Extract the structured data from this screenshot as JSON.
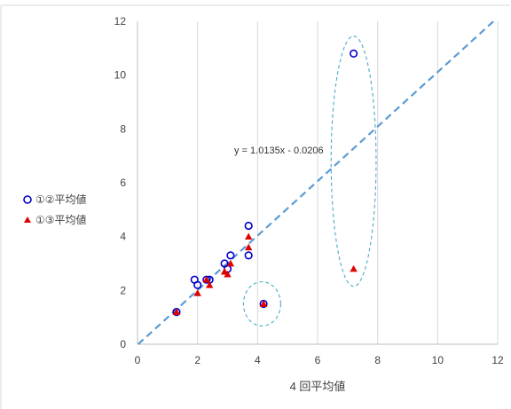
{
  "chart_data": {
    "type": "scatter",
    "xlabel": "4 回平均値",
    "ylabel": "",
    "xlim": [
      0,
      12
    ],
    "ylim": [
      0,
      12
    ],
    "xticks": [
      "0",
      "2",
      "4",
      "6",
      "8",
      "10",
      "12"
    ],
    "yticks": [
      "0",
      "2",
      "4",
      "6",
      "8",
      "10",
      "12"
    ],
    "grid": "vertical",
    "legend_position": "left",
    "series": [
      {
        "name": "①②平均値",
        "marker": "circle-open",
        "color": "#0000CC",
        "points": [
          [
            1.3,
            1.2
          ],
          [
            1.9,
            2.4
          ],
          [
            2.0,
            2.2
          ],
          [
            2.3,
            2.4
          ],
          [
            2.4,
            2.4
          ],
          [
            2.9,
            3.0
          ],
          [
            3.0,
            2.8
          ],
          [
            3.1,
            3.3
          ],
          [
            3.7,
            4.4
          ],
          [
            3.7,
            3.3
          ],
          [
            4.2,
            1.5
          ],
          [
            7.2,
            10.8
          ]
        ]
      },
      {
        "name": "①③平均値",
        "marker": "triangle-filled",
        "color": "#E00000",
        "points": [
          [
            1.3,
            1.2
          ],
          [
            2.0,
            1.9
          ],
          [
            2.3,
            2.4
          ],
          [
            2.4,
            2.2
          ],
          [
            2.9,
            2.7
          ],
          [
            3.0,
            2.6
          ],
          [
            3.1,
            3.0
          ],
          [
            3.7,
            4.0
          ],
          [
            3.7,
            3.6
          ],
          [
            4.2,
            1.5
          ],
          [
            7.2,
            2.8
          ]
        ]
      }
    ],
    "trendline": {
      "equation": "y = 1.0135x - 0.0206",
      "slope": 1.0135,
      "intercept": -0.0206,
      "color": "#5B9BD5",
      "style": "dashed"
    },
    "highlight_ellipses": [
      {
        "cx": 7.2,
        "cy": 6.8,
        "rx": 0.75,
        "ry": 4.65
      },
      {
        "cx": 4.15,
        "cy": 1.5,
        "rx": 0.62,
        "ry": 0.82
      }
    ]
  }
}
